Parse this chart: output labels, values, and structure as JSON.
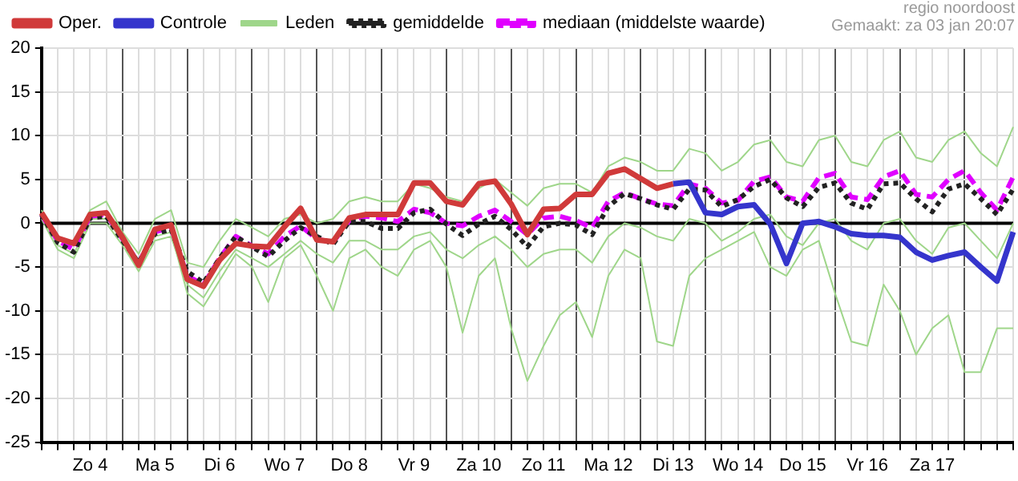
{
  "chart_data": {
    "type": "line",
    "categories": [
      null,
      null,
      null,
      "Zo 4",
      null,
      null,
      null,
      "Ma 5",
      null,
      null,
      null,
      "Di 6",
      null,
      null,
      null,
      "Wo 7",
      null,
      null,
      null,
      "Do 8",
      null,
      null,
      null,
      "Vr 9",
      null,
      null,
      null,
      "Za 10",
      null,
      null,
      null,
      "Zo 11",
      null,
      null,
      null,
      "Ma 12",
      null,
      null,
      null,
      "Di 13",
      null,
      null,
      null,
      "Wo 14",
      null,
      null,
      null,
      "Do 15",
      null,
      null,
      null,
      "Vr 16",
      null,
      null,
      null,
      "Za 17",
      null,
      null,
      null,
      null,
      null
    ],
    "series": [
      {
        "name": "Oper.",
        "color": "#d03a3a",
        "values": [
          1.2,
          -1.7,
          -2.3,
          1.0,
          1.2,
          -1.6,
          -4.8,
          -0.7,
          -0.2,
          -6.4,
          -7.2,
          -4.2,
          -2.3,
          -2.6,
          -2.7,
          -0.4,
          1.7,
          -1.9,
          -2.1,
          0.6,
          1.0,
          1.0,
          1.0,
          4.6,
          4.6,
          2.5,
          2.1,
          4.5,
          4.8,
          2.2,
          -1.3,
          1.6,
          1.7,
          3.3,
          3.3,
          5.7,
          6.2,
          5.1,
          4.0,
          4.5,
          null,
          null,
          null,
          null,
          null,
          null,
          null,
          null,
          null,
          null,
          null,
          null,
          null,
          null,
          null,
          null,
          null,
          null,
          null,
          null,
          null
        ]
      },
      {
        "name": "Controle",
        "color": "#3535cc",
        "values": [
          null,
          null,
          null,
          null,
          null,
          null,
          null,
          null,
          null,
          null,
          null,
          null,
          null,
          null,
          null,
          null,
          null,
          null,
          null,
          null,
          null,
          null,
          null,
          null,
          null,
          null,
          null,
          null,
          null,
          null,
          null,
          null,
          null,
          null,
          null,
          null,
          null,
          null,
          null,
          4.5,
          4.7,
          1.2,
          1.0,
          1.9,
          2.1,
          -0.1,
          -4.6,
          0,
          0.2,
          -0.4,
          -1.2,
          -1.4,
          -1.4,
          -1.6,
          -3.3,
          -4.2,
          -3.7,
          -3.3,
          -5.0,
          -6.6,
          -1.0
        ]
      },
      {
        "name": "Leden",
        "color": "#9fd68a",
        "values": [
          1.5,
          -1.5,
          -2.5,
          1.5,
          2.5,
          -1.0,
          -3.5,
          0.5,
          1.5,
          -4.5,
          -5.0,
          -2.0,
          0.5,
          -0.5,
          -1.5,
          0.5,
          1.0,
          0.0,
          0.5,
          2.5,
          3.0,
          2.5,
          2.5,
          4.5,
          4.0,
          3.0,
          2.5,
          4.0,
          5.0,
          3.5,
          2.0,
          4.0,
          4.5,
          4.5,
          3.5,
          6.5,
          7.5,
          7.0,
          6.0,
          6.0,
          8.5,
          8.0,
          6.0,
          7.0,
          9.0,
          9.5,
          7.0,
          6.5,
          9.5,
          10.0,
          7.0,
          6.5,
          9.5,
          10.5,
          7.5,
          7.0,
          9.5,
          10.5,
          8.0,
          6.5,
          11.0
        ]
      },
      {
        "name": "gemiddelde",
        "color": "#222222",
        "line_style": "dotted",
        "values": [
          1.0,
          -2.2,
          -3.3,
          0.6,
          0.8,
          -2.0,
          -4.5,
          -1.2,
          -0.7,
          -5.5,
          -6.8,
          -4.0,
          -1.5,
          -2.7,
          -3.8,
          -2.0,
          -0.5,
          -1.5,
          -2.4,
          0.2,
          0.2,
          -0.6,
          -0.6,
          1.2,
          1.6,
          -0.1,
          -1.4,
          -0.1,
          0.8,
          -0.7,
          -2.7,
          -0.4,
          0,
          -0.2,
          -1.3,
          1.9,
          3.4,
          2.8,
          2.1,
          1.6,
          3.9,
          3.8,
          1.9,
          2.7,
          4.2,
          5.0,
          2.9,
          1.9,
          4.1,
          4.6,
          2.3,
          1.6,
          4.5,
          4.6,
          2.8,
          1.3,
          3.9,
          4.5,
          2.8,
          1.0,
          3.9
        ]
      },
      {
        "name": "mediaan (middelste waarde)",
        "color": "#e000ff",
        "line_style": "dashed",
        "values": [
          1.0,
          -2.0,
          -3.0,
          0.8,
          1.0,
          -1.8,
          -4.5,
          -1.0,
          -0.5,
          -6.0,
          -7.0,
          -4.0,
          -1.5,
          -2.6,
          -3.5,
          -1.5,
          -0.3,
          -1.8,
          -2.2,
          0.3,
          0.8,
          0.6,
          0.2,
          1.6,
          1.2,
          0,
          -0.3,
          0.8,
          1.5,
          0.2,
          -1.3,
          0.6,
          0.8,
          0.3,
          -0.5,
          2.5,
          3.5,
          2.8,
          2.2,
          2.0,
          4.5,
          4.0,
          2.3,
          2.6,
          4.8,
          5.3,
          3.0,
          2.5,
          5.2,
          5.7,
          3.0,
          2.7,
          5.3,
          6.0,
          3.3,
          3.0,
          5.0,
          6.0,
          3.5,
          1.5,
          5.3
        ]
      },
      {
        "color": "#9fd68a",
        "values": [
          0.5,
          -3.0,
          -4.0,
          0.0,
          0.0,
          -2.5,
          -5.5,
          -2.0,
          -1.5,
          -7.0,
          -8.5,
          -5.5,
          -3.0,
          -4.0,
          -5.0,
          -3.5,
          -2.0,
          -3.5,
          -4.5,
          -2.0,
          -2.0,
          -3.0,
          -3.0,
          -1.5,
          -1.0,
          -3.0,
          -4.0,
          -2.5,
          -1.5,
          -3.0,
          -5.0,
          -3.5,
          -3.0,
          -3.0,
          -4.5,
          -1.5,
          0.0,
          -0.5,
          -1.5,
          -2.0,
          0.5,
          0.0,
          -2.0,
          -1.0,
          0.5,
          1.0,
          -1.5,
          -2.5,
          0.0,
          0.5,
          -2.0,
          -3.0,
          0.0,
          0.5,
          -2.0,
          -3.5,
          -0.5,
          0.0,
          -2.0,
          -4.0,
          0.0
        ]
      },
      {
        "color": "#9fd68a",
        "values": [
          0.8,
          -2.5,
          -3.5,
          0.5,
          0.5,
          -2.0,
          -5.0,
          -1.5,
          -1.0,
          -8.0,
          -9.5,
          -6.5,
          -3.5,
          -5.0,
          -9.0,
          -4.0,
          -2.5,
          -6.0,
          -10.0,
          -4.0,
          -3.0,
          -5.0,
          -6.0,
          -3.0,
          -2.0,
          -5.0,
          -12.5,
          -6.0,
          -4.0,
          -12.0,
          -18.0,
          -14.0,
          -10.5,
          -9.0,
          -13.0,
          -6.0,
          -3.0,
          -4.0,
          -13.5,
          -14.0,
          -6.0,
          -4.0,
          -3.0,
          -2.0,
          -1.0,
          -5.0,
          -6.0,
          -3.0,
          -2.0,
          -8.0,
          -13.5,
          -14.0,
          -7.0,
          -10.0,
          -15.0,
          -12.0,
          -10.5,
          -17.0,
          -17.0,
          -12.0,
          -12.0
        ]
      }
    ],
    "ylim": [
      -25,
      20
    ],
    "yticks": [
      -25,
      -20,
      -15,
      -10,
      -5,
      0,
      5,
      10,
      15,
      20
    ],
    "grid": true,
    "legend": "top",
    "marker": "none",
    "ref_lines": [
      {
        "axis": "y",
        "value": 0,
        "color": "#000000"
      }
    ],
    "annotations": [
      "regio noordoost",
      "Gemaakt: za 03 jan 20:07"
    ]
  }
}
